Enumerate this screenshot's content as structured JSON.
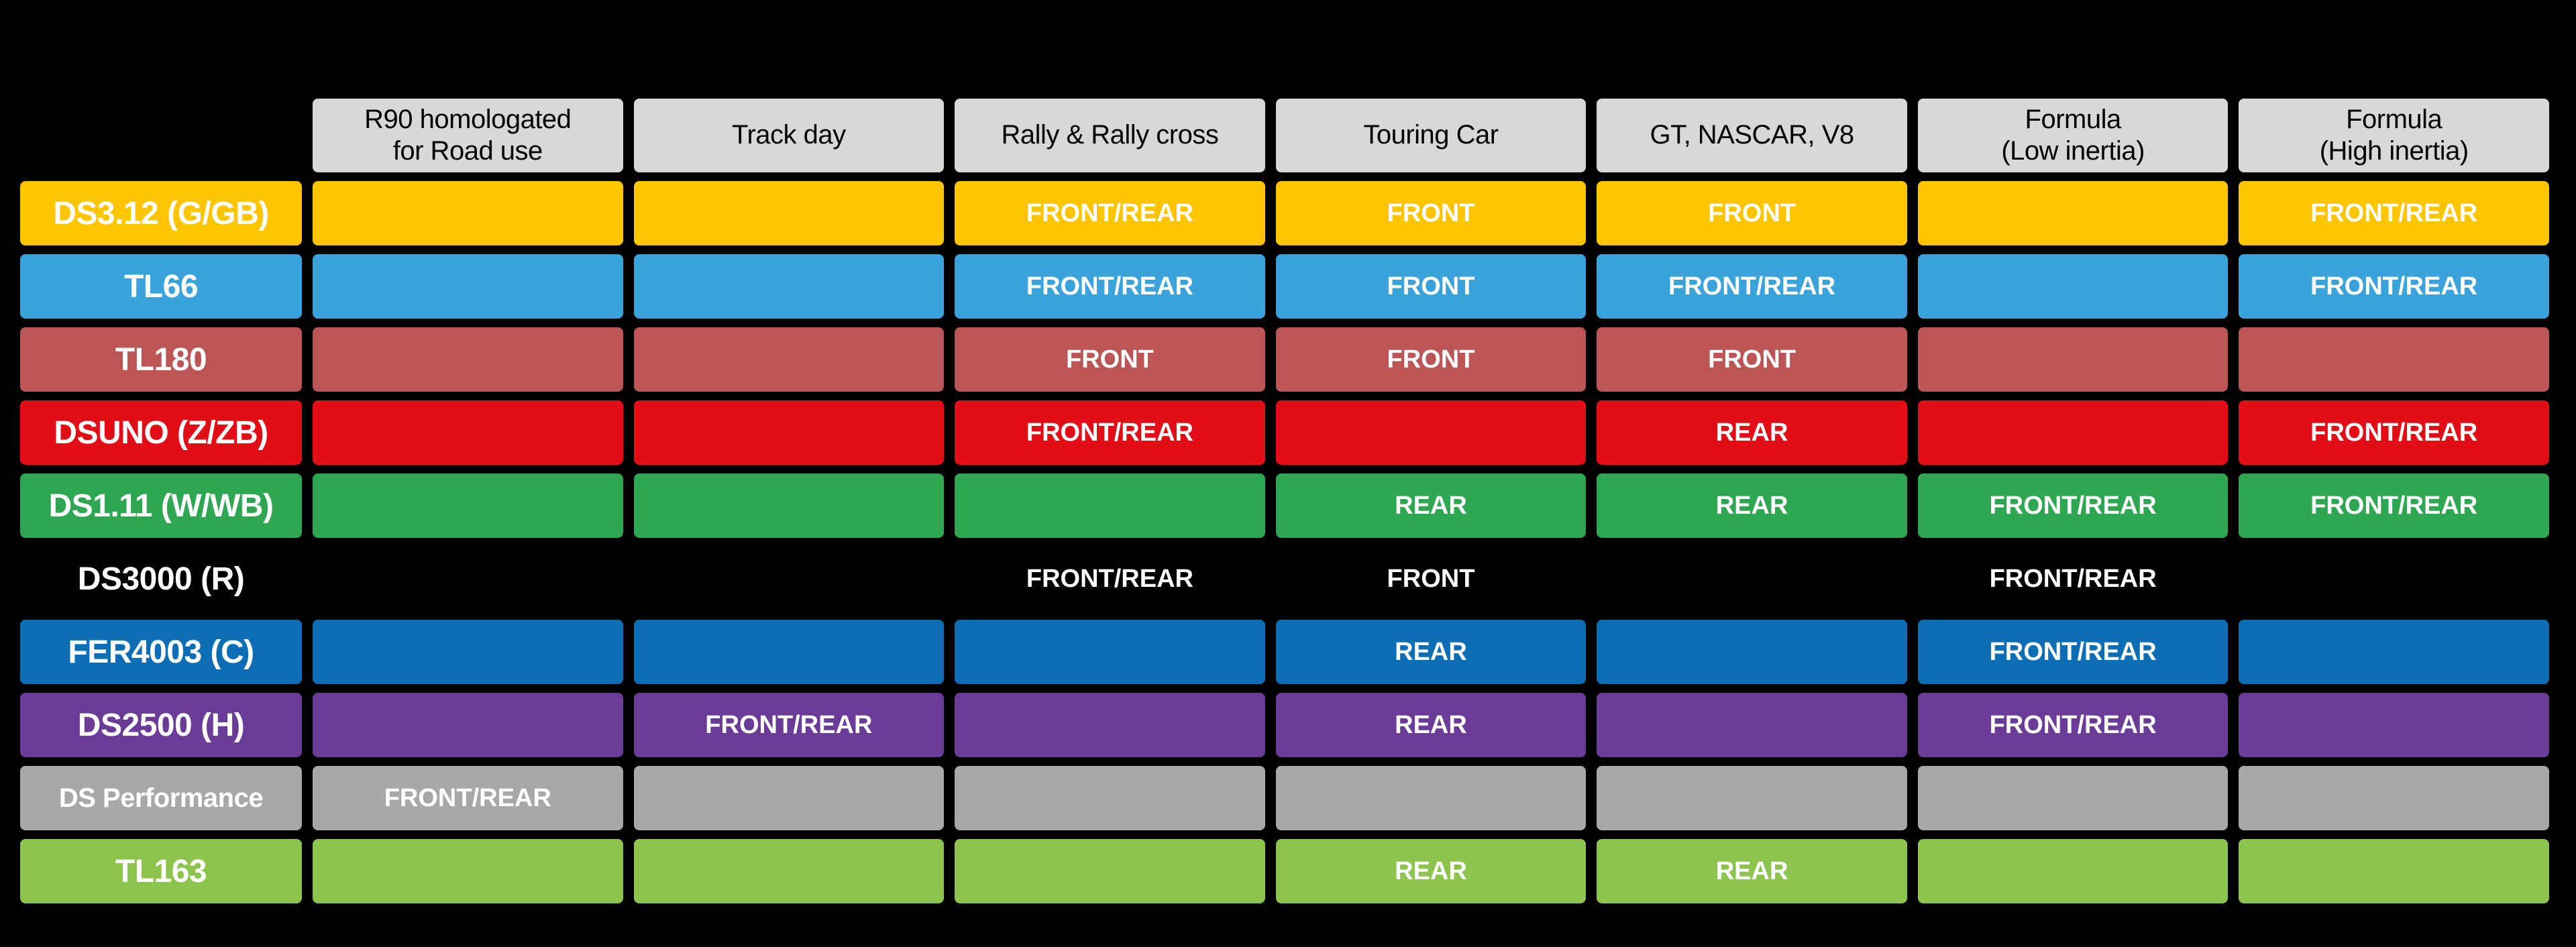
{
  "chart_data": {
    "type": "table",
    "columns": [
      "R90 homologated\nfor Road use",
      "Track day",
      "Rally & Rally cross",
      "Touring Car",
      "GT, NASCAR, V8",
      "Formula\n(Low inertia)",
      "Formula\n(High inertia)"
    ],
    "rows": [
      {
        "label": "DS3.12 (G/GB)",
        "color": "#FDC500",
        "values": [
          "",
          "",
          "FRONT/REAR",
          "FRONT",
          "FRONT",
          "",
          "FRONT/REAR"
        ]
      },
      {
        "label": "TL66",
        "color": "#3AA3DC",
        "values": [
          "",
          "",
          "FRONT/REAR",
          "FRONT",
          "FRONT/REAR",
          "",
          "FRONT/REAR"
        ]
      },
      {
        "label": "TL180",
        "color": "#BB5556",
        "values": [
          "",
          "",
          "FRONT",
          "FRONT",
          "FRONT",
          "",
          ""
        ]
      },
      {
        "label": "DSUNO (Z/ZB)",
        "color": "#E10E17",
        "values": [
          "",
          "",
          "FRONT/REAR",
          "",
          "REAR",
          "",
          "FRONT/REAR"
        ]
      },
      {
        "label": "DS1.11 (W/WB)",
        "color": "#2FA752",
        "values": [
          "",
          "",
          "",
          "REAR",
          "REAR",
          "FRONT/REAR",
          "FRONT/REAR"
        ]
      },
      {
        "label": "DS3000 (R)",
        "color": "",
        "values": [
          "",
          "",
          "FRONT/REAR",
          "FRONT",
          "",
          "FRONT/REAR",
          ""
        ]
      },
      {
        "label": "FER4003 (C)",
        "color": "#0E6EB5",
        "values": [
          "",
          "",
          "",
          "REAR",
          "",
          "FRONT/REAR",
          ""
        ]
      },
      {
        "label": "DS2500 (H)",
        "color": "#6B3C97",
        "values": [
          "",
          "FRONT/REAR",
          "",
          "REAR",
          "",
          "FRONT/REAR",
          ""
        ]
      },
      {
        "label": "DS Performance",
        "color": "#A8A8A8",
        "values": [
          "FRONT/REAR",
          "",
          "",
          "",
          "",
          "",
          ""
        ]
      },
      {
        "label": "TL163",
        "color": "#8CC44E",
        "values": [
          "",
          "",
          "",
          "REAR",
          "REAR",
          "",
          ""
        ]
      }
    ],
    "layout": {
      "background": "#000000",
      "header_bg": "#D8D8D8",
      "header_text": "#000000",
      "cell_text": "#FFFFFF"
    }
  }
}
